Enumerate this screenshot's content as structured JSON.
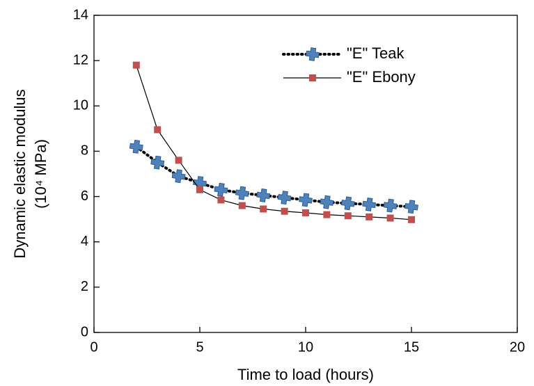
{
  "chart_data": {
    "type": "line",
    "x_label": "Time to load (hours)",
    "y_label": [
      "Dynamic elastic modulus",
      "(10⁴ MPa)"
    ],
    "xlim": [
      0,
      20
    ],
    "xticks": [
      0,
      5,
      10,
      15,
      20
    ],
    "ylim": [
      0,
      14
    ],
    "yticks": [
      0,
      2,
      4,
      6,
      8,
      10,
      12,
      14
    ],
    "legend": "top-right",
    "series": [
      {
        "name": "\"E\" Teak",
        "color": "#4f81bd",
        "line_color": "#000000",
        "line_style": "dotted",
        "marker": "cross",
        "x": [
          2,
          3,
          4,
          5,
          6,
          7,
          8,
          9,
          10,
          11,
          12,
          13,
          14,
          15
        ],
        "values": [
          8.2,
          7.5,
          6.9,
          6.6,
          6.3,
          6.15,
          6.05,
          5.95,
          5.85,
          5.75,
          5.7,
          5.65,
          5.6,
          5.55
        ]
      },
      {
        "name": "\"E\" Ebony",
        "color": "#c0504d",
        "line_color": "#000000",
        "line_style": "solid",
        "marker": "square",
        "x": [
          2,
          3,
          4,
          5,
          6,
          7,
          8,
          9,
          10,
          11,
          12,
          13,
          14,
          15
        ],
        "values": [
          11.8,
          8.95,
          7.6,
          6.3,
          5.85,
          5.6,
          5.45,
          5.35,
          5.28,
          5.2,
          5.15,
          5.1,
          5.05,
          4.98
        ]
      }
    ]
  }
}
